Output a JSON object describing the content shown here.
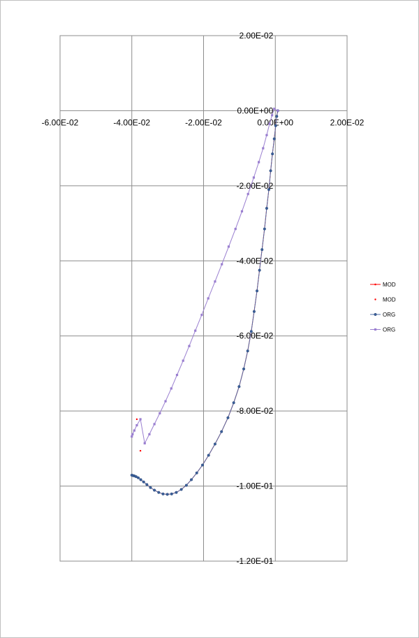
{
  "chart_data": {
    "type": "scatter",
    "title": "",
    "xlabel": "",
    "ylabel": "",
    "xlim": [
      -0.06,
      0.02
    ],
    "ylim": [
      -0.12,
      0.02
    ],
    "grid": true,
    "legend_position": "right",
    "x_tick_labels": [
      "-6.00E-02",
      "-4.00E-02",
      "-2.00E-02",
      "0.00E+00",
      "2.00E-02"
    ],
    "x_tick_values": [
      -0.06,
      -0.04,
      -0.02,
      0.0,
      0.02
    ],
    "y_tick_labels": [
      "2.00E-02",
      "0.00E+00",
      "-2.00E-02",
      "-4.00E-02",
      "-6.00E-02",
      "-8.00E-02",
      "-1.00E-01",
      "-1.20E-01"
    ],
    "y_tick_values": [
      0.02,
      0.0,
      -0.02,
      -0.04,
      -0.06,
      -0.08,
      -0.1,
      -0.12
    ],
    "series": [
      {
        "name": "MOD",
        "style": "line-marker",
        "color": "#ff0000",
        "x": [
          0.0007,
          0.0004,
          0.0001,
          -0.0003,
          -0.0008,
          -0.0013,
          -0.0018,
          -0.0024,
          -0.003,
          -0.0037,
          -0.0044,
          -0.0051,
          -0.0059,
          -0.0067,
          -0.0077,
          -0.0088,
          -0.0101,
          -0.0116,
          -0.0132,
          -0.015,
          -0.0168,
          -0.0186,
          -0.0203,
          -0.0219,
          -0.0234,
          -0.0248,
          -0.0262,
          -0.0276,
          -0.0289,
          -0.0301,
          -0.0313,
          -0.0325,
          -0.0337,
          -0.0348,
          -0.0358,
          -0.0367,
          -0.0375,
          -0.0382,
          -0.0388,
          -0.0393,
          -0.0397,
          -0.04
        ],
        "y": [
          0.0,
          -0.0015,
          -0.004,
          -0.0075,
          -0.0115,
          -0.016,
          -0.021,
          -0.026,
          -0.0315,
          -0.037,
          -0.0425,
          -0.048,
          -0.0535,
          -0.0588,
          -0.064,
          -0.0688,
          -0.0735,
          -0.0778,
          -0.0818,
          -0.0855,
          -0.0888,
          -0.0918,
          -0.0944,
          -0.0965,
          -0.0983,
          -0.0998,
          -0.1009,
          -0.1017,
          -0.1021,
          -0.1022,
          -0.1021,
          -0.1017,
          -0.1011,
          -0.1004,
          -0.0996,
          -0.0989,
          -0.0983,
          -0.0978,
          -0.0975,
          -0.0973,
          -0.0972,
          -0.0971
        ]
      },
      {
        "name": "MOD",
        "style": "marker",
        "color": "#ff0000",
        "x": [
          -0.0003,
          -0.0009,
          -0.0016,
          -0.0024,
          -0.0034,
          -0.0046,
          -0.006,
          -0.0076,
          -0.0093,
          -0.0111,
          -0.013,
          -0.0149,
          -0.0168,
          -0.0187,
          -0.0205,
          -0.0223,
          -0.024,
          -0.0257,
          -0.0274,
          -0.029,
          -0.0306,
          -0.0322,
          -0.0337,
          -0.0351,
          -0.0364,
          -0.0376,
          -0.0386,
          -0.0393,
          -0.0398,
          -0.04
        ],
        "y": [
          0.0005,
          -0.0012,
          -0.0035,
          -0.0065,
          -0.01,
          -0.0137,
          -0.0178,
          -0.0222,
          -0.0268,
          -0.0315,
          -0.0362,
          -0.0409,
          -0.0455,
          -0.05,
          -0.0544,
          -0.0586,
          -0.0627,
          -0.0666,
          -0.0704,
          -0.074,
          -0.0774,
          -0.0806,
          -0.0835,
          -0.0862,
          -0.0886,
          -0.0906,
          -0.0822,
          -0.0852,
          -0.0862,
          -0.0868
        ]
      },
      {
        "name": "ORG",
        "style": "line-circle",
        "color": "#4f6fa8",
        "x": [
          0.0007,
          0.0004,
          0.0001,
          -0.0003,
          -0.0008,
          -0.0013,
          -0.0018,
          -0.0024,
          -0.003,
          -0.0037,
          -0.0044,
          -0.0051,
          -0.0059,
          -0.0067,
          -0.0077,
          -0.0088,
          -0.0101,
          -0.0116,
          -0.0132,
          -0.015,
          -0.0168,
          -0.0186,
          -0.0203,
          -0.0219,
          -0.0234,
          -0.0248,
          -0.0262,
          -0.0276,
          -0.0289,
          -0.0301,
          -0.0313,
          -0.0325,
          -0.0337,
          -0.0348,
          -0.0358,
          -0.0367,
          -0.0375,
          -0.0382,
          -0.0388,
          -0.0393,
          -0.0397,
          -0.04
        ],
        "y": [
          0.0,
          -0.0015,
          -0.004,
          -0.0075,
          -0.0115,
          -0.016,
          -0.021,
          -0.026,
          -0.0315,
          -0.037,
          -0.0425,
          -0.048,
          -0.0535,
          -0.0588,
          -0.064,
          -0.0688,
          -0.0735,
          -0.0778,
          -0.0818,
          -0.0855,
          -0.0888,
          -0.0918,
          -0.0944,
          -0.0965,
          -0.0983,
          -0.0998,
          -0.1009,
          -0.1017,
          -0.1021,
          -0.1022,
          -0.1021,
          -0.1017,
          -0.1011,
          -0.1004,
          -0.0996,
          -0.0989,
          -0.0983,
          -0.0978,
          -0.0975,
          -0.0973,
          -0.0972,
          -0.0971
        ]
      },
      {
        "name": "ORG",
        "style": "line-square",
        "color": "#9a7fd0",
        "x": [
          0.0007,
          -0.0003,
          -0.0009,
          -0.0016,
          -0.0024,
          -0.0034,
          -0.0046,
          -0.006,
          -0.0076,
          -0.0093,
          -0.0111,
          -0.013,
          -0.0149,
          -0.0168,
          -0.0187,
          -0.0205,
          -0.0223,
          -0.024,
          -0.0257,
          -0.0274,
          -0.029,
          -0.0306,
          -0.0322,
          -0.0337,
          -0.0351,
          -0.0364,
          -0.0376,
          -0.0386,
          -0.0393,
          -0.0398,
          -0.04
        ],
        "y": [
          0.0,
          0.0005,
          -0.0012,
          -0.0035,
          -0.0065,
          -0.01,
          -0.0137,
          -0.0178,
          -0.0222,
          -0.0268,
          -0.0315,
          -0.0362,
          -0.0409,
          -0.0455,
          -0.05,
          -0.0544,
          -0.0586,
          -0.0627,
          -0.0666,
          -0.0704,
          -0.074,
          -0.0774,
          -0.0806,
          -0.0835,
          -0.0862,
          -0.0886,
          -0.0822,
          -0.0838,
          -0.0852,
          -0.0862,
          -0.0868
        ]
      }
    ]
  }
}
